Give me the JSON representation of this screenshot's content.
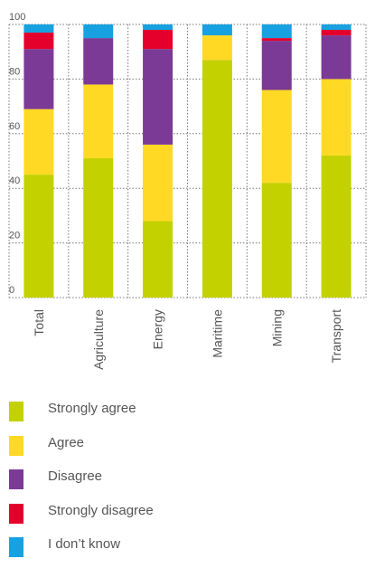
{
  "chart_data": {
    "type": "bar",
    "stacked": true,
    "categories": [
      "Total",
      "Agriculture",
      "Energy",
      "Maritime",
      "Mining",
      "Transport"
    ],
    "series": [
      {
        "name": "Strongly agree",
        "color": "#c3d100",
        "values": [
          45,
          51,
          28,
          87,
          42,
          52
        ]
      },
      {
        "name": "Agree",
        "color": "#ffd923",
        "values": [
          24,
          27,
          28,
          9,
          34,
          28
        ]
      },
      {
        "name": "Disagree",
        "color": "#7b3a96",
        "values": [
          22,
          17,
          35,
          0,
          18,
          16
        ]
      },
      {
        "name": "Strongly disagree",
        "color": "#e4002b",
        "values": [
          6,
          0,
          7,
          0,
          1,
          2
        ]
      },
      {
        "name": "I don’t know",
        "color": "#17a1e0",
        "values": [
          3,
          5,
          2,
          4,
          5,
          2
        ]
      }
    ],
    "ylim": [
      0,
      100
    ],
    "yticks": [
      0,
      20,
      40,
      60,
      80,
      100
    ],
    "grid": true,
    "legend_placement": "bottom"
  }
}
